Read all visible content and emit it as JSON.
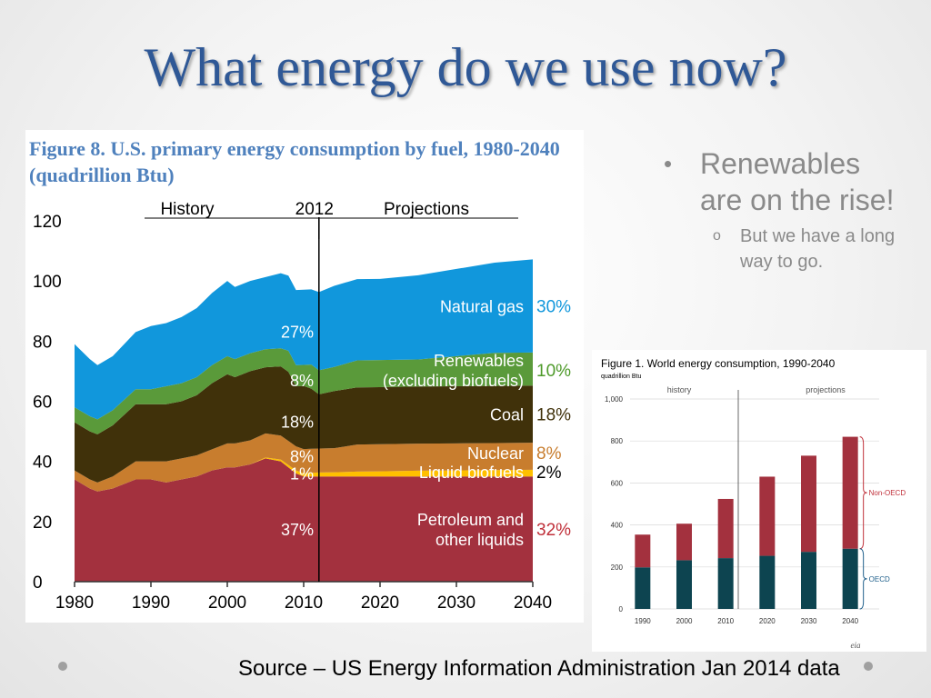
{
  "slide": {
    "title": "What energy do we use now?",
    "source": "Source – US Energy Information Administration Jan 2014 data",
    "bullets": [
      {
        "text": "Renewables are on the rise!",
        "sub": "But we have a long way to go."
      }
    ]
  },
  "chart_data": [
    {
      "type": "area",
      "title": "Figure 8. U.S. primary energy consumption by fuel, 1980-2040 (quadrillion Btu)",
      "header_history": "History",
      "header_year": "2012",
      "header_projections": "Projections",
      "divider_year": 2012,
      "xlim": [
        1980,
        2040
      ],
      "ylim": [
        0,
        120
      ],
      "x_ticks": [
        "1980",
        "1990",
        "2000",
        "2010",
        "2020",
        "2030",
        "2040"
      ],
      "y_ticks": [
        "0",
        "20",
        "40",
        "60",
        "80",
        "100",
        "120"
      ],
      "x": [
        1980,
        1982,
        1983,
        1985,
        1988,
        1990,
        1992,
        1994,
        1996,
        1998,
        2000,
        2001,
        2003,
        2005,
        2007,
        2008,
        2009,
        2010,
        2011,
        2012,
        2014,
        2017,
        2020,
        2025,
        2030,
        2035,
        2040
      ],
      "series": [
        {
          "name": "Petroleum and other liquids",
          "color": "#a3313e",
          "values": [
            34,
            31,
            30,
            31,
            34,
            34,
            33,
            34,
            35,
            37,
            38,
            38,
            39,
            41,
            40,
            38,
            36,
            35,
            35,
            35,
            35,
            35,
            35,
            35,
            35,
            35,
            35
          ]
        },
        {
          "name": "Liquid biofuels",
          "color": "#ffc000",
          "values": [
            0,
            0,
            0,
            0,
            0,
            0,
            0,
            0,
            0,
            0,
            0,
            0,
            0,
            0.3,
            0.6,
            0.8,
            1,
            1.1,
            1.2,
            1.3,
            1.4,
            1.6,
            1.7,
            1.9,
            2,
            2.1,
            2.2
          ]
        },
        {
          "name": "Nuclear",
          "color": "#c87d2e",
          "values": [
            3,
            3,
            3,
            4,
            6,
            6,
            7,
            7,
            7,
            7,
            8,
            8,
            8,
            8,
            8,
            8,
            8,
            8,
            8,
            8,
            8,
            9,
            9,
            9,
            9,
            9,
            9
          ]
        },
        {
          "name": "Coal",
          "color": "#40310a",
          "values": [
            16,
            16,
            16,
            17,
            19,
            19,
            19,
            19,
            20,
            22,
            23,
            22,
            23,
            22,
            23,
            23,
            20,
            21,
            20,
            18,
            19,
            19,
            19,
            19,
            19,
            19,
            19
          ]
        },
        {
          "name": "Renewables (excluding biofuels)",
          "color": "#5a9a3a",
          "values": [
            5,
            5,
            5,
            5,
            5,
            5,
            6,
            6,
            6,
            6,
            6,
            6,
            6,
            6,
            6,
            7,
            7,
            7,
            8,
            8,
            8,
            9,
            9,
            9,
            10,
            11,
            11
          ]
        },
        {
          "name": "Natural gas",
          "color": "#1197dc",
          "values": [
            21,
            19,
            18,
            18,
            19,
            21,
            21,
            22,
            23,
            24,
            25,
            24,
            24,
            24,
            25,
            25,
            25,
            25,
            25,
            26,
            27,
            27,
            27,
            28,
            29,
            30,
            31
          ]
        }
      ],
      "labels_2012": [
        "37%",
        "1%",
        "8%",
        "18%",
        "8%",
        "27%"
      ],
      "labels_2040": [
        "32%",
        "2%",
        "8%",
        "18%",
        "10%",
        "30%"
      ],
      "series_labels": [
        "Petroleum and\nother liquids",
        "Liquid biofuels",
        "Nuclear",
        "Coal",
        "Renewables\n(excluding biofuels)",
        "Natural gas"
      ],
      "label_colors_2040": [
        "#c0303a",
        "#000000",
        "#c87d2e",
        "#40310a",
        "#4e9a2a",
        "#1197dc"
      ]
    },
    {
      "type": "bar",
      "title": "Figure 1. World energy consumption, 1990-2040",
      "unit_label": "quadrillion  Btu",
      "header_history": "history",
      "header_projections": "projections",
      "categories": [
        "1990",
        "2000",
        "2010",
        "2020",
        "2030",
        "2040"
      ],
      "ylim": [
        0,
        1000
      ],
      "y_ticks": [
        "0",
        "200",
        "400",
        "600",
        "800",
        "1,000"
      ],
      "series": [
        {
          "name": "OECD",
          "color": "#0d4450",
          "values": [
            198,
            232,
            242,
            253,
            272,
            287
          ]
        },
        {
          "name": "Non-OECD",
          "color": "#a3313e",
          "values": [
            156,
            174,
            282,
            377,
            458,
            533
          ]
        }
      ],
      "legend_colors": [
        "#1f5f8b",
        "#c0303a"
      ],
      "logo_text": "eia"
    }
  ]
}
